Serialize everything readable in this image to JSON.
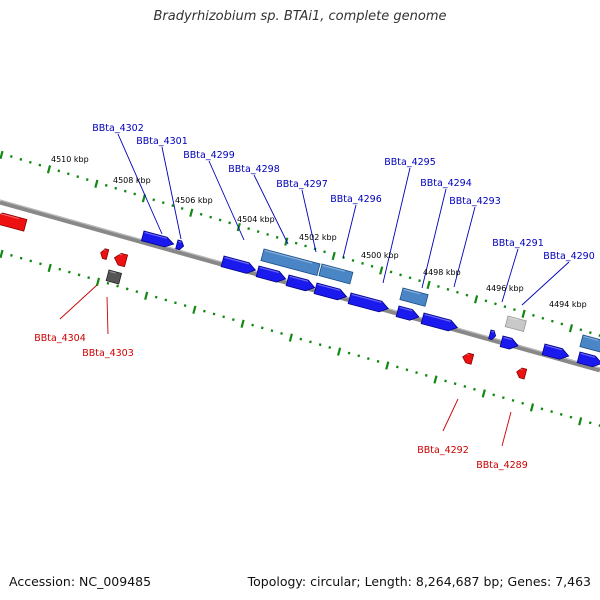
{
  "title": "Bradyrhizobium sp. BTAi1, complete genome",
  "footer": {
    "accession": "Accession: NC_009485",
    "topology": "Topology: circular; Length: 8,264,687 bp; Genes: 7,463"
  },
  "colors": {
    "forward_gene": "#1a1aee",
    "forward_gene_edge": "#000088",
    "rna_gene": "#4a86c6",
    "rna_gene_edge": "#1d4f8a",
    "reverse_gene": "#ee1111",
    "pseudo_gene": "#555555",
    "pseudo_gene_light": "#c8c8c8",
    "backbone": "#888888",
    "ticks": "#118811",
    "label_forward": "#0000bb",
    "label_reverse": "#cc0000"
  },
  "kbp_labels": [
    "4510 kbp",
    "4508 kbp",
    "4506 kbp",
    "4504 kbp",
    "4502 kbp",
    "4500 kbp",
    "4498 kbp",
    "4496 kbp",
    "4494 kbp"
  ],
  "forward_genes": [
    {
      "label": "BBta_4302",
      "type": "cds"
    },
    {
      "label": "BBta_4301",
      "type": "cds"
    },
    {
      "label": "BBta_4299",
      "type": "cds"
    },
    {
      "label": "BBta_4298",
      "type": "rna"
    },
    {
      "label": "BBta_4297",
      "type": "rna"
    },
    {
      "label": "BBta_4296",
      "type": "rna"
    },
    {
      "label": "BBta_4295",
      "type": "cds"
    },
    {
      "label": "BBta_4294",
      "type": "rna"
    },
    {
      "label": "BBta_4293",
      "type": "cds"
    },
    {
      "label": "BBta_4291",
      "type": "cds"
    },
    {
      "label": "BBta_4290",
      "type": "cds"
    }
  ],
  "reverse_genes": [
    {
      "label": "BBta_4304",
      "type": "cds"
    },
    {
      "label": "BBta_4303",
      "type": "pseudo"
    },
    {
      "label": "BBta_4292",
      "type": "cds"
    },
    {
      "label": "BBta_4289",
      "type": "cds"
    }
  ]
}
